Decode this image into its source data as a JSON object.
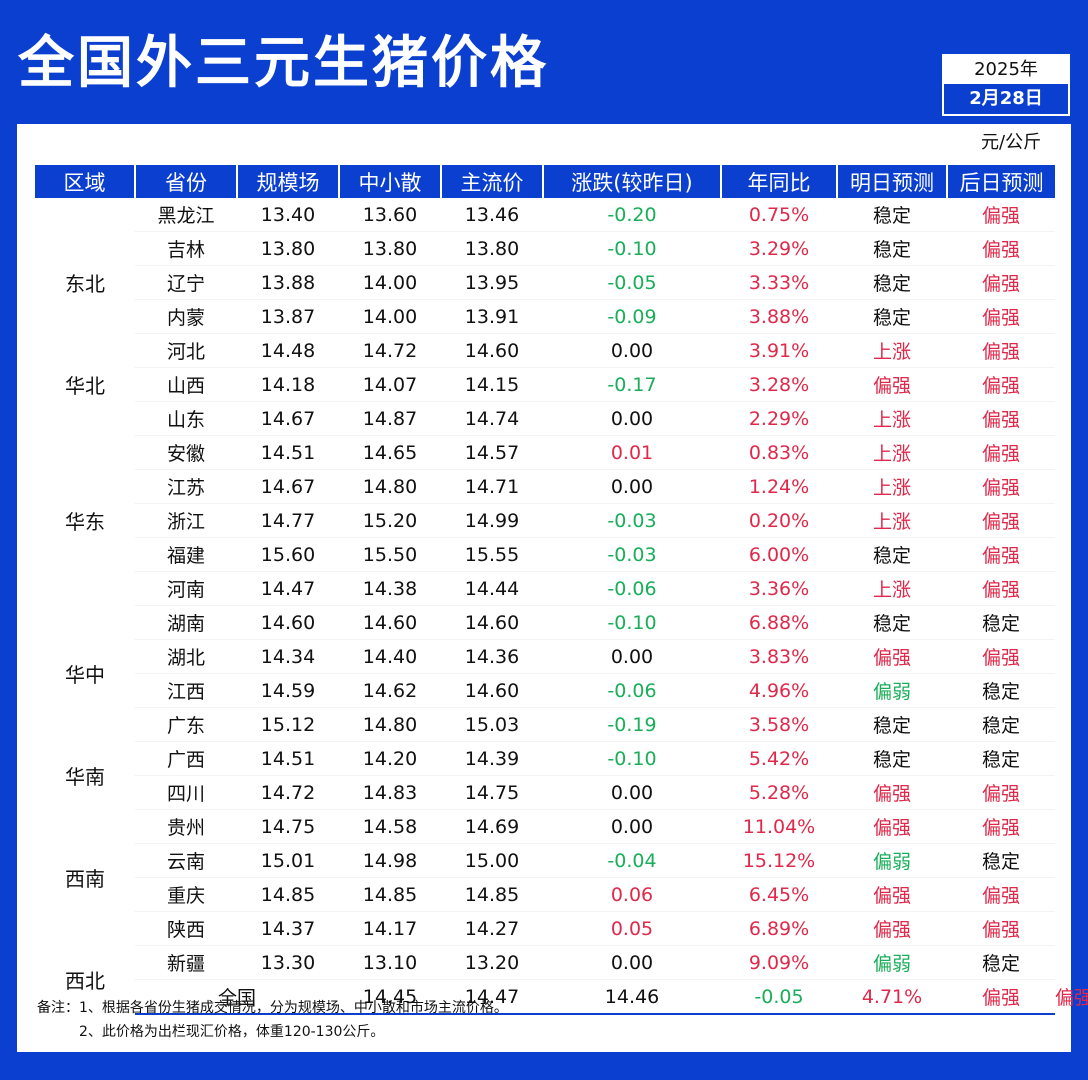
{
  "title": "全国外三元生猪价格",
  "date": {
    "year": "2025年",
    "day": "2月28日"
  },
  "unit": "元/公斤",
  "headers": [
    "区域",
    "省份",
    "规模场",
    "中小散",
    "主流价",
    "涨跌(较昨日)",
    "年同比",
    "明日预测",
    "后日预测"
  ],
  "colors": {
    "brand": "#0b3fd0",
    "up": "#e0284a",
    "down": "#1aae5a",
    "neutral": "#111111"
  },
  "regions": [
    {
      "name": "东北",
      "rows": 3
    },
    {
      "name": "华北",
      "rows": 3
    },
    {
      "name": "华东",
      "rows": 5
    },
    {
      "name": "华中",
      "rows": 4
    },
    {
      "name": "华南",
      "rows": 2
    },
    {
      "name": "西南",
      "rows": 4
    },
    {
      "name": "西北",
      "rows": 2
    }
  ],
  "rows": [
    {
      "province": "黑龙江",
      "large": "13.40",
      "small": "13.60",
      "main": "13.46",
      "change": "-0.20",
      "yoy": "0.75%",
      "tomorrow": "稳定",
      "after": "偏强"
    },
    {
      "province": "吉林",
      "large": "13.80",
      "small": "13.80",
      "main": "13.80",
      "change": "-0.10",
      "yoy": "3.29%",
      "tomorrow": "稳定",
      "after": "偏强"
    },
    {
      "province": "辽宁",
      "large": "13.88",
      "small": "14.00",
      "main": "13.95",
      "change": "-0.05",
      "yoy": "3.33%",
      "tomorrow": "稳定",
      "after": "偏强"
    },
    {
      "province": "内蒙",
      "large": "13.87",
      "small": "14.00",
      "main": "13.91",
      "change": "-0.09",
      "yoy": "3.88%",
      "tomorrow": "稳定",
      "after": "偏强"
    },
    {
      "province": "河北",
      "large": "14.48",
      "small": "14.72",
      "main": "14.60",
      "change": "0.00",
      "yoy": "3.91%",
      "tomorrow": "上涨",
      "after": "偏强"
    },
    {
      "province": "山西",
      "large": "14.18",
      "small": "14.07",
      "main": "14.15",
      "change": "-0.17",
      "yoy": "3.28%",
      "tomorrow": "偏强",
      "after": "偏强"
    },
    {
      "province": "山东",
      "large": "14.67",
      "small": "14.87",
      "main": "14.74",
      "change": "0.00",
      "yoy": "2.29%",
      "tomorrow": "上涨",
      "after": "偏强"
    },
    {
      "province": "安徽",
      "large": "14.51",
      "small": "14.65",
      "main": "14.57",
      "change": "0.01",
      "yoy": "0.83%",
      "tomorrow": "上涨",
      "after": "偏强"
    },
    {
      "province": "江苏",
      "large": "14.67",
      "small": "14.80",
      "main": "14.71",
      "change": "0.00",
      "yoy": "1.24%",
      "tomorrow": "上涨",
      "after": "偏强"
    },
    {
      "province": "浙江",
      "large": "14.77",
      "small": "15.20",
      "main": "14.99",
      "change": "-0.03",
      "yoy": "0.20%",
      "tomorrow": "上涨",
      "after": "偏强"
    },
    {
      "province": "福建",
      "large": "15.60",
      "small": "15.50",
      "main": "15.55",
      "change": "-0.03",
      "yoy": "6.00%",
      "tomorrow": "稳定",
      "after": "偏强"
    },
    {
      "province": "河南",
      "large": "14.47",
      "small": "14.38",
      "main": "14.44",
      "change": "-0.06",
      "yoy": "3.36%",
      "tomorrow": "上涨",
      "after": "偏强"
    },
    {
      "province": "湖南",
      "large": "14.60",
      "small": "14.60",
      "main": "14.60",
      "change": "-0.10",
      "yoy": "6.88%",
      "tomorrow": "稳定",
      "after": "稳定"
    },
    {
      "province": "湖北",
      "large": "14.34",
      "small": "14.40",
      "main": "14.36",
      "change": "0.00",
      "yoy": "3.83%",
      "tomorrow": "偏强",
      "after": "偏强"
    },
    {
      "province": "江西",
      "large": "14.59",
      "small": "14.62",
      "main": "14.60",
      "change": "-0.06",
      "yoy": "4.96%",
      "tomorrow": "偏弱",
      "after": "稳定"
    },
    {
      "province": "广东",
      "large": "15.12",
      "small": "14.80",
      "main": "15.03",
      "change": "-0.19",
      "yoy": "3.58%",
      "tomorrow": "稳定",
      "after": "稳定"
    },
    {
      "province": "广西",
      "large": "14.51",
      "small": "14.20",
      "main": "14.39",
      "change": "-0.10",
      "yoy": "5.42%",
      "tomorrow": "稳定",
      "after": "稳定"
    },
    {
      "province": "四川",
      "large": "14.72",
      "small": "14.83",
      "main": "14.75",
      "change": "0.00",
      "yoy": "5.28%",
      "tomorrow": "偏强",
      "after": "偏强"
    },
    {
      "province": "贵州",
      "large": "14.75",
      "small": "14.58",
      "main": "14.69",
      "change": "0.00",
      "yoy": "11.04%",
      "tomorrow": "偏强",
      "after": "偏强"
    },
    {
      "province": "云南",
      "large": "15.01",
      "small": "14.98",
      "main": "15.00",
      "change": "-0.04",
      "yoy": "15.12%",
      "tomorrow": "偏弱",
      "after": "稳定"
    },
    {
      "province": "重庆",
      "large": "14.85",
      "small": "14.85",
      "main": "14.85",
      "change": "0.06",
      "yoy": "6.45%",
      "tomorrow": "偏强",
      "after": "偏强"
    },
    {
      "province": "陕西",
      "large": "14.37",
      "small": "14.17",
      "main": "14.27",
      "change": "0.05",
      "yoy": "6.89%",
      "tomorrow": "偏强",
      "after": "偏强"
    },
    {
      "province": "新疆",
      "large": "13.30",
      "small": "13.10",
      "main": "13.20",
      "change": "0.00",
      "yoy": "9.09%",
      "tomorrow": "偏弱",
      "after": "稳定"
    }
  ],
  "total": {
    "label": "全国",
    "large": "14.45",
    "small": "14.47",
    "main": "14.46",
    "change": "-0.05",
    "yoy": "4.71%",
    "tomorrow": "偏强",
    "after": "偏强"
  },
  "notes": [
    "备注：1、根据各省份生猪成交情况，分为规模场、中小散和市场主流价格。",
    "2、此价格为出栏现汇价格，体重120-130公斤。"
  ]
}
